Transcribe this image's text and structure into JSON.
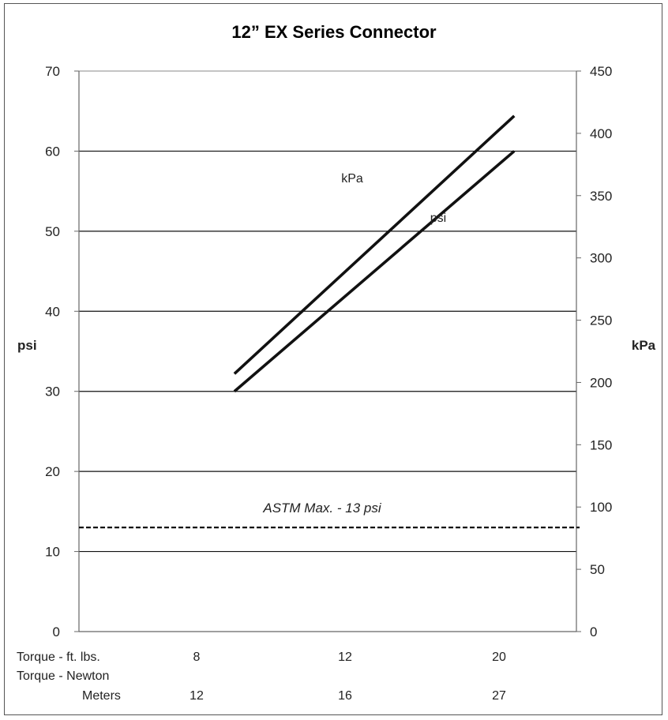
{
  "chart_data": {
    "type": "line",
    "title": "12” EX Series Connector",
    "ylabel": "psi",
    "y2label": "kPa",
    "ylim": [
      0,
      70
    ],
    "y2lim": [
      0,
      450
    ],
    "yticks": [
      0,
      10,
      20,
      30,
      40,
      50,
      60,
      70
    ],
    "y2ticks": [
      0,
      50,
      100,
      150,
      200,
      250,
      300,
      350,
      400,
      450
    ],
    "x_row_labels": {
      "ft_lbs": "Torque - ft. lbs.",
      "nm_line1": "Torque -  Newton",
      "nm_line2": "Meters"
    },
    "x_ticks_ft_lbs": [
      "8",
      "12",
      "20"
    ],
    "x_ticks_nm": [
      "12",
      "16",
      "27"
    ],
    "grid": true,
    "series": [
      {
        "name": "kPa",
        "axis": "right",
        "x": [
          7.5,
          21
        ],
        "values": [
          207,
          414
        ]
      },
      {
        "name": "psi",
        "axis": "left",
        "x": [
          7.5,
          21
        ],
        "values": [
          30,
          60
        ]
      }
    ],
    "reference_line": {
      "value": 13,
      "axis": "left",
      "label": "ASTM Max. - 13 psi",
      "style": "dashed"
    }
  }
}
